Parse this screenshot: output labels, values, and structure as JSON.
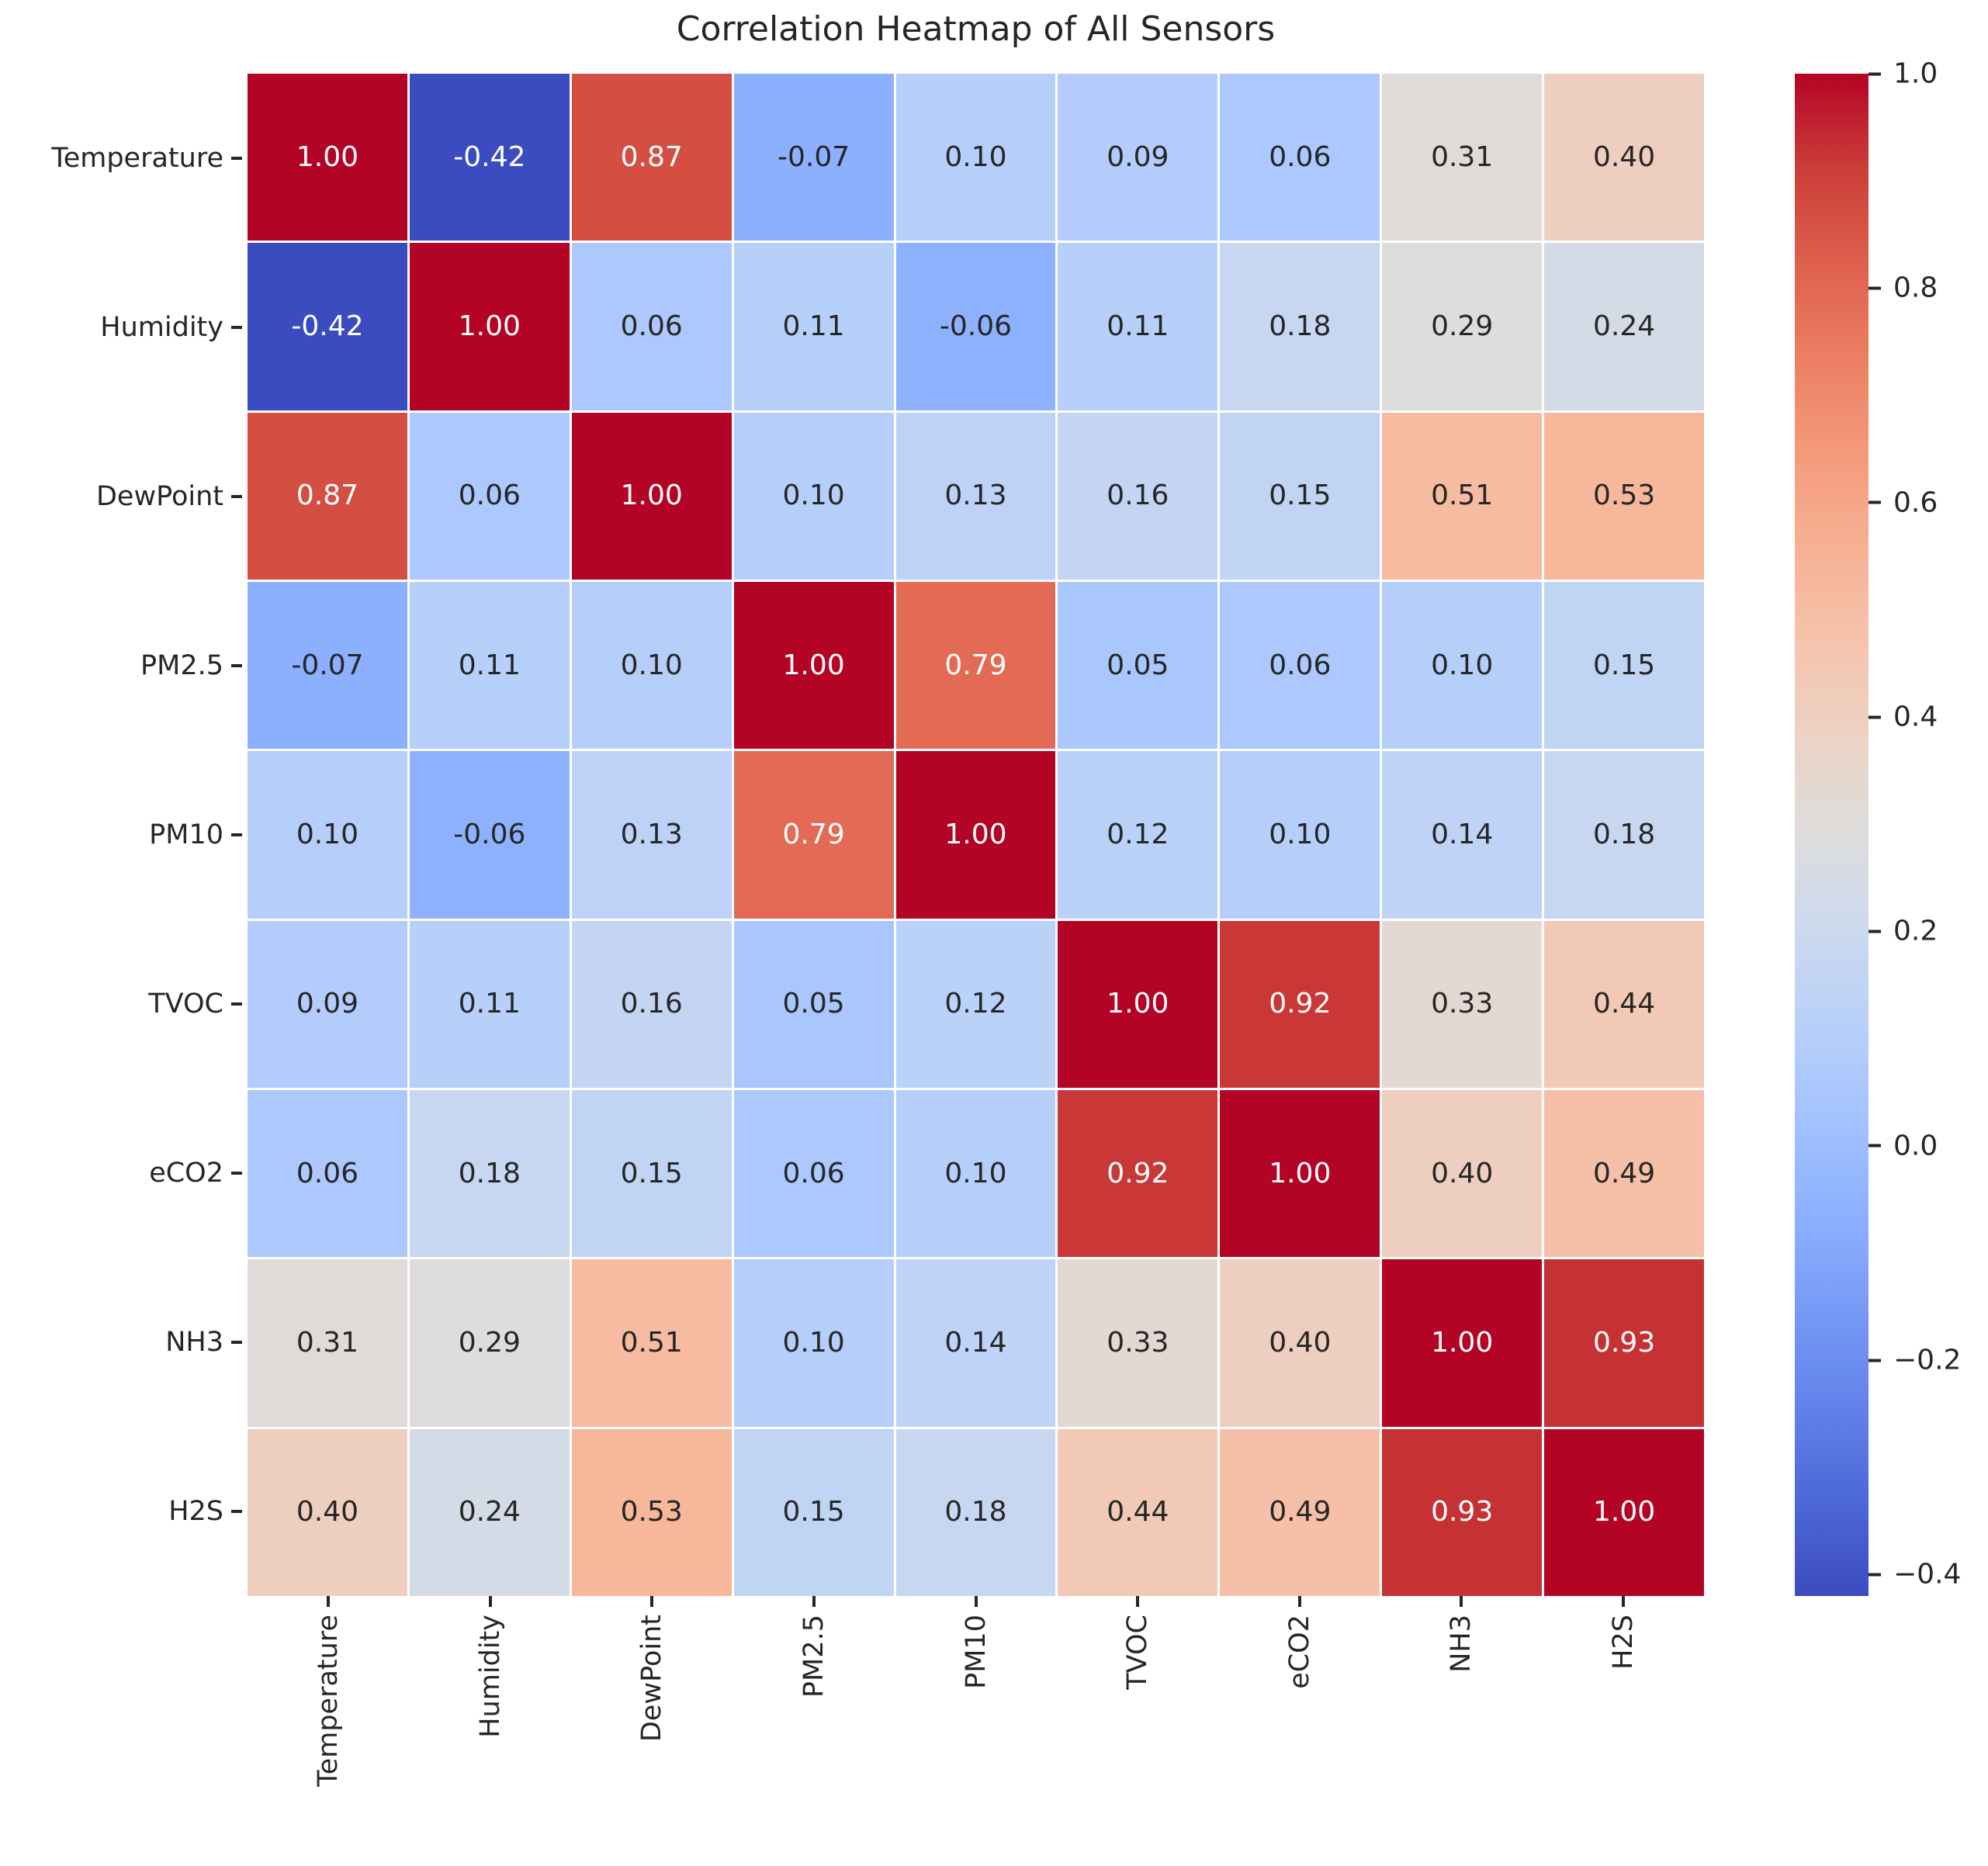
{
  "chart_data": {
    "type": "heatmap",
    "title": "Correlation Heatmap of All Sensors",
    "categories": [
      "Temperature",
      "Humidity",
      "DewPoint",
      "PM2.5",
      "PM10",
      "TVOC",
      "eCO2",
      "NH3",
      "H2S"
    ],
    "matrix": [
      [
        1.0,
        -0.42,
        0.87,
        -0.07,
        0.1,
        0.09,
        0.06,
        0.31,
        0.4
      ],
      [
        -0.42,
        1.0,
        0.06,
        0.11,
        -0.06,
        0.11,
        0.18,
        0.29,
        0.24
      ],
      [
        0.87,
        0.06,
        1.0,
        0.1,
        0.13,
        0.16,
        0.15,
        0.51,
        0.53
      ],
      [
        -0.07,
        0.11,
        0.1,
        1.0,
        0.79,
        0.05,
        0.06,
        0.1,
        0.15
      ],
      [
        0.1,
        -0.06,
        0.13,
        0.79,
        1.0,
        0.12,
        0.1,
        0.14,
        0.18
      ],
      [
        0.09,
        0.11,
        0.16,
        0.05,
        0.12,
        1.0,
        0.92,
        0.33,
        0.44
      ],
      [
        0.06,
        0.18,
        0.15,
        0.06,
        0.1,
        0.92,
        1.0,
        0.4,
        0.49
      ],
      [
        0.31,
        0.29,
        0.51,
        0.1,
        0.14,
        0.33,
        0.4,
        1.0,
        0.93
      ],
      [
        0.4,
        0.24,
        0.53,
        0.15,
        0.18,
        0.44,
        0.49,
        0.93,
        1.0
      ]
    ],
    "annotation_decimals": 2,
    "vmin": -0.42,
    "vmax": 1.0,
    "colormap": {
      "name": "coolwarm",
      "anchors": [
        {
          "t": 0.0,
          "c": "#3b4cc0"
        },
        {
          "t": 0.0625,
          "c": "#4d68d7"
        },
        {
          "t": 0.125,
          "c": "#6282ea"
        },
        {
          "t": 0.1875,
          "c": "#779af7"
        },
        {
          "t": 0.25,
          "c": "#8db0fe"
        },
        {
          "t": 0.3125,
          "c": "#a3c2ff"
        },
        {
          "t": 0.375,
          "c": "#b8d0f9"
        },
        {
          "t": 0.4375,
          "c": "#ccd9ee"
        },
        {
          "t": 0.5,
          "c": "#dddddd"
        },
        {
          "t": 0.5625,
          "c": "#ecd3c5"
        },
        {
          "t": 0.625,
          "c": "#f5c4ad"
        },
        {
          "t": 0.6875,
          "c": "#f7b194"
        },
        {
          "t": 0.75,
          "c": "#f49a7b"
        },
        {
          "t": 0.8125,
          "c": "#ec7f63"
        },
        {
          "t": 0.875,
          "c": "#de604d"
        },
        {
          "t": 0.9375,
          "c": "#cb3e38"
        },
        {
          "t": 1.0,
          "c": "#b40426"
        }
      ]
    },
    "colorbar_ticks": [
      {
        "value": 1.0,
        "label": "1.0"
      },
      {
        "value": 0.8,
        "label": "0.8"
      },
      {
        "value": 0.6,
        "label": "0.6"
      },
      {
        "value": 0.4,
        "label": "0.4"
      },
      {
        "value": 0.2,
        "label": "0.2"
      },
      {
        "value": 0.0,
        "label": "0.0"
      },
      {
        "value": -0.2,
        "label": "−0.2"
      },
      {
        "value": -0.4,
        "label": "−0.4"
      }
    ],
    "colors": {
      "annotation_light": "#ffffff",
      "annotation_dark": "#262626",
      "tick": "#262626",
      "gridline": "#ffffff",
      "background": "#ffffff"
    },
    "layout": {
      "x_tick_rotation": 90,
      "colorbar_position": "right",
      "grid": false
    }
  }
}
